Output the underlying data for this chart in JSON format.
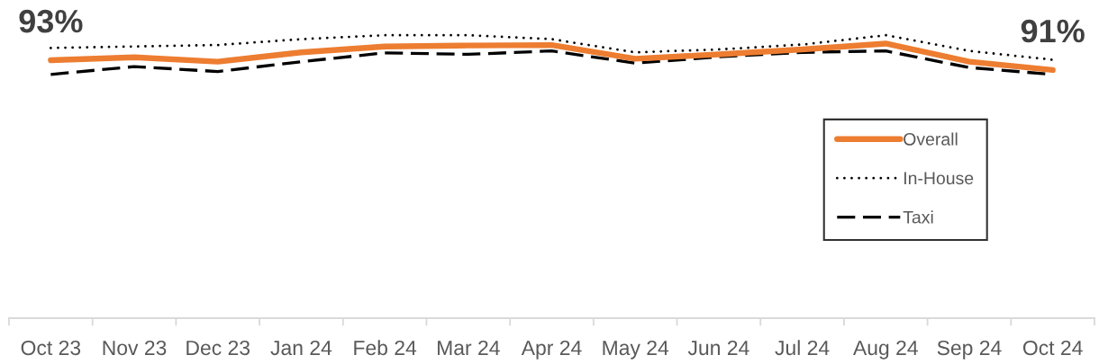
{
  "chart_data": {
    "type": "line",
    "categories": [
      "Oct 23",
      "Nov 23",
      "Dec 23",
      "Jan 24",
      "Feb 24",
      "Mar 24",
      "Apr 24",
      "May 24",
      "Jun 24",
      "Jul 24",
      "Aug 24",
      "Sep 24",
      "Oct 24"
    ],
    "series": [
      {
        "name": "Overall",
        "color": "#ed7d31",
        "line_style": "solid",
        "values": [
          93.0,
          93.6,
          92.7,
          94.6,
          95.8,
          96.0,
          96.1,
          93.3,
          94.2,
          95.2,
          96.4,
          92.7,
          91.0
        ],
        "value_labels": [
          "93%",
          null,
          null,
          null,
          null,
          null,
          null,
          null,
          null,
          null,
          null,
          null,
          "91%"
        ]
      },
      {
        "name": "In-House",
        "color": "#000000",
        "line_style": "dotted",
        "values": [
          95.5,
          95.8,
          96.1,
          97.3,
          98.1,
          98.1,
          97.3,
          94.6,
          95.2,
          96.2,
          98.1,
          94.9,
          93.1
        ]
      },
      {
        "name": "Taxi",
        "color": "#000000",
        "line_style": "dashed",
        "values": [
          90.1,
          91.7,
          90.7,
          92.7,
          94.5,
          94.2,
          94.9,
          92.4,
          93.7,
          94.6,
          94.9,
          91.5,
          90.1
        ]
      }
    ],
    "tick_labels": "x",
    "legend": "right"
  }
}
